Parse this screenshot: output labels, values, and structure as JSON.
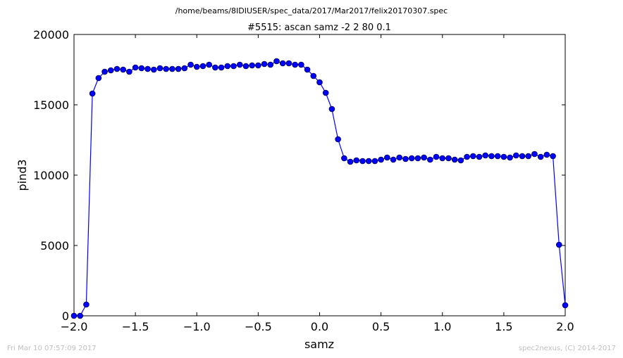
{
  "figure": {
    "file_path": "/home/beams/8IDIUSER/spec_data/2017/Mar2017/felix20170307.spec",
    "footer_left": "Fri Mar 10 07:57:09 2017",
    "footer_right": "spec2nexus, (C) 2014-2017"
  },
  "chart_data": {
    "type": "line",
    "title": "#5515: ascan  samz -2 2  80 0.1",
    "xlabel": "samz",
    "ylabel": "pind3",
    "xlim": [
      -2.0,
      2.0
    ],
    "ylim": [
      0,
      20000
    ],
    "xticks": [
      -2.0,
      -1.5,
      -1.0,
      -0.5,
      0.0,
      0.5,
      1.0,
      1.5,
      2.0
    ],
    "xtick_labels": [
      "−2.0",
      "−1.5",
      "−1.0",
      "−0.5",
      "0.0",
      "0.5",
      "1.0",
      "1.5",
      "2.0"
    ],
    "yticks": [
      0,
      5000,
      10000,
      15000,
      20000
    ],
    "ytick_labels": [
      "0",
      "5000",
      "10000",
      "15000",
      "20000"
    ],
    "grid": false,
    "line_color": "#0000ff",
    "marker_color": "#0000ff",
    "marker": "circle",
    "series": [
      {
        "x": [
          -2.0,
          -1.95,
          -1.9,
          -1.85,
          -1.8,
          -1.75,
          -1.7,
          -1.65,
          -1.6,
          -1.55,
          -1.5,
          -1.45,
          -1.4,
          -1.35,
          -1.3,
          -1.25,
          -1.2,
          -1.15,
          -1.1,
          -1.05,
          -1.0,
          -0.95,
          -0.9,
          -0.85,
          -0.8,
          -0.75,
          -0.7,
          -0.65,
          -0.6,
          -0.55,
          -0.5,
          -0.45,
          -0.4,
          -0.35,
          -0.3,
          -0.25,
          -0.2,
          -0.15,
          -0.1,
          -0.05,
          0.0,
          0.05,
          0.1,
          0.15,
          0.2,
          0.25,
          0.3,
          0.35,
          0.4,
          0.45,
          0.5,
          0.55,
          0.6,
          0.65,
          0.7,
          0.75,
          0.8,
          0.85,
          0.9,
          0.95,
          1.0,
          1.05,
          1.1,
          1.15,
          1.2,
          1.25,
          1.3,
          1.35,
          1.4,
          1.45,
          1.5,
          1.55,
          1.6,
          1.65,
          1.7,
          1.75,
          1.8,
          1.85,
          1.9,
          1.95,
          2.0
        ],
        "y": [
          0,
          0,
          800,
          15800,
          16900,
          17350,
          17450,
          17550,
          17500,
          17350,
          17650,
          17600,
          17550,
          17500,
          17600,
          17550,
          17550,
          17550,
          17600,
          17850,
          17700,
          17750,
          17850,
          17650,
          17650,
          17750,
          17750,
          17850,
          17750,
          17800,
          17800,
          17900,
          17850,
          18100,
          17950,
          17950,
          17850,
          17850,
          17500,
          17050,
          16600,
          15850,
          14700,
          12550,
          11200,
          10950,
          11050,
          11000,
          11000,
          11000,
          11100,
          11250,
          11100,
          11250,
          11150,
          11200,
          11200,
          11250,
          11100,
          11300,
          11200,
          11200,
          11100,
          11050,
          11300,
          11350,
          11300,
          11400,
          11350,
          11350,
          11300,
          11250,
          11400,
          11350,
          11350,
          11500,
          11300,
          11450,
          11350,
          5050,
          750
        ]
      }
    ]
  }
}
